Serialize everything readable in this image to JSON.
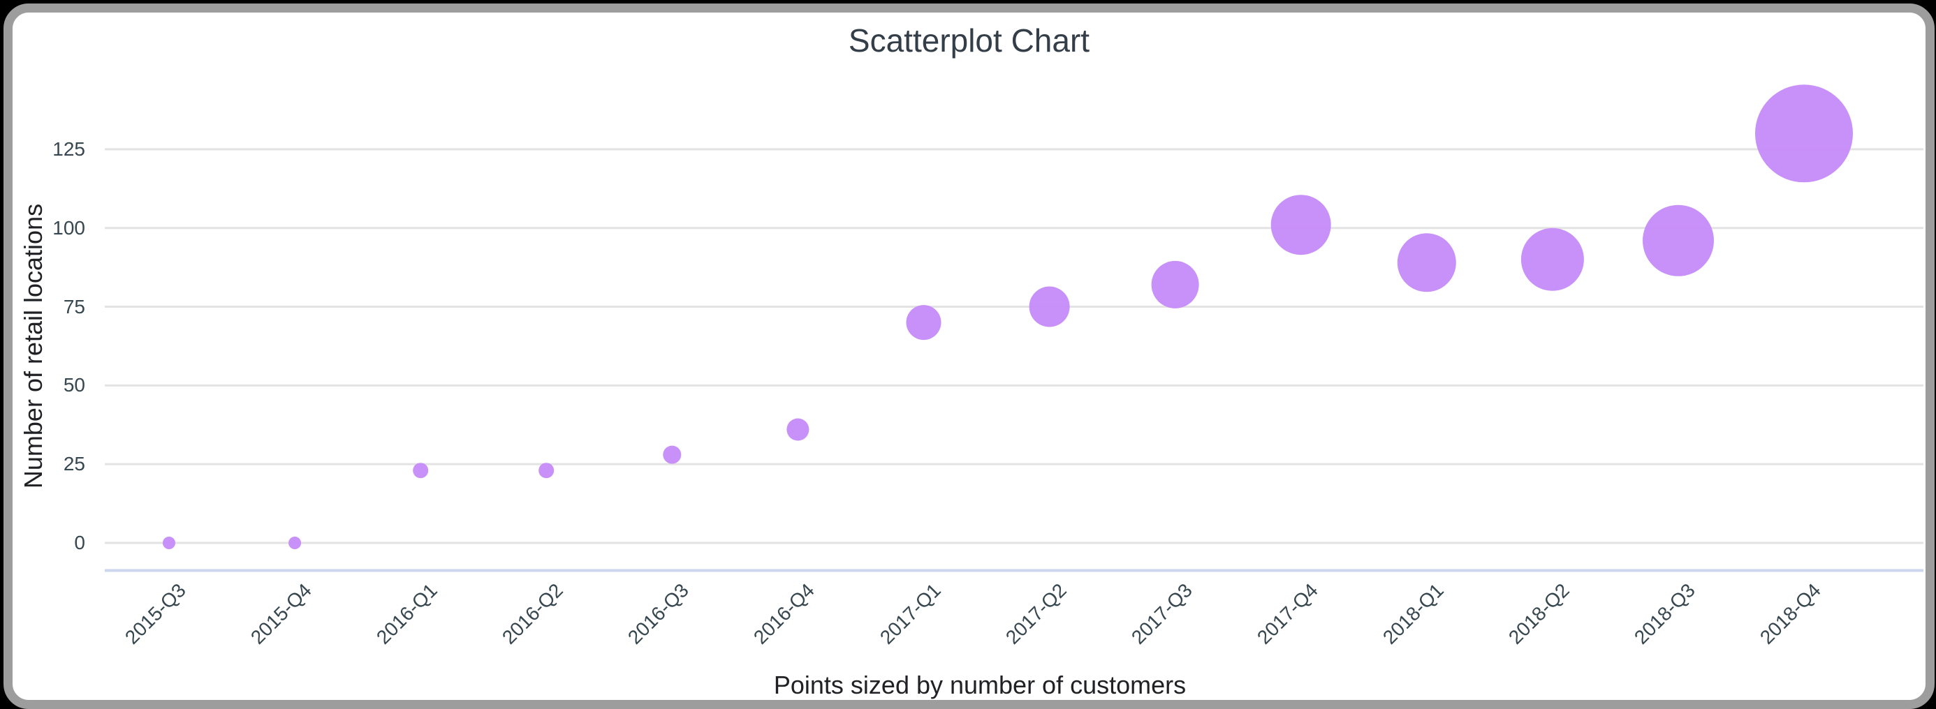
{
  "page": {
    "background_color": "#000000",
    "card_border_color": "#9d9d9d",
    "card_background_color": "#ffffff"
  },
  "chart_data": {
    "type": "scatter",
    "title": "Scatterplot Chart",
    "xlabel": "Points sized by number of customers",
    "ylabel": "Number of retail locations",
    "categories": [
      "2015-Q3",
      "2015-Q4",
      "2016-Q1",
      "2016-Q2",
      "2016-Q3",
      "2016-Q4",
      "2017-Q1",
      "2017-Q2",
      "2017-Q3",
      "2017-Q4",
      "2018-Q1",
      "2018-Q2",
      "2018-Q3",
      "2018-Q4"
    ],
    "values": [
      0,
      0,
      23,
      23,
      28,
      36,
      70,
      75,
      82,
      101,
      89,
      90,
      96,
      130
    ],
    "point_radius_px": [
      9,
      9,
      11,
      11,
      13,
      16,
      25,
      29,
      34,
      43,
      42,
      45,
      51,
      70
    ],
    "y_ticks": [
      0,
      25,
      50,
      75,
      100,
      125
    ],
    "ylim": [
      0,
      140
    ],
    "grid": true,
    "legend": "none",
    "point_color": "#c58af9",
    "gridline_color": "#e3e3e3",
    "baseline_color": "#ccd6ec",
    "tick_label_color": "#37474f",
    "axis_title_color": "#202124",
    "title_color": "#333e48"
  }
}
